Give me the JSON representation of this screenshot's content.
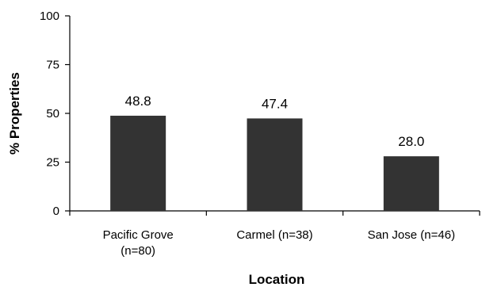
{
  "chart_data": {
    "type": "bar",
    "categories": [
      "Pacific Grove (n=80)",
      "Carmel (n=38)",
      "San Jose (n=46)"
    ],
    "category_lines": [
      [
        "Pacific Grove",
        "(n=80)"
      ],
      [
        "Carmel (n=38)"
      ],
      [
        "San Jose (n=46)"
      ]
    ],
    "values": [
      48.8,
      47.4,
      28.0
    ],
    "value_labels": [
      "48.8",
      "47.4",
      "28.0"
    ],
    "title": "",
    "xlabel": "Location",
    "ylabel": "% Properties",
    "ylim": [
      0,
      100
    ],
    "yticks": [
      0,
      25,
      50,
      75,
      100
    ],
    "grid": false,
    "bar_color": "#333333"
  }
}
